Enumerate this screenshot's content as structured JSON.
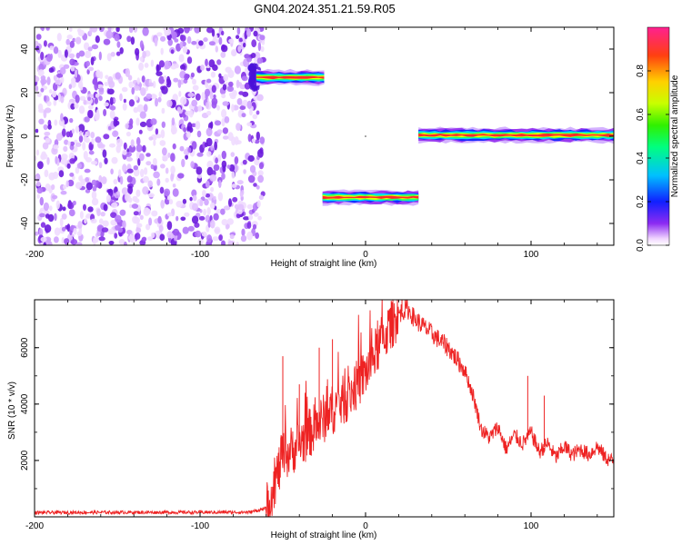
{
  "title": "GN04.2024.351.21.59.R05",
  "chart_data": [
    {
      "type": "heatmap",
      "xlabel": "Height of straight line (km)",
      "ylabel": "Frequency (Hz)",
      "xlim": [
        -200,
        150
      ],
      "ylim": [
        -50,
        50
      ],
      "xticks": [
        "-200",
        "-100",
        "0",
        "100"
      ],
      "xtick_values": [
        -200,
        -100,
        0,
        100
      ],
      "yticks": [
        "40",
        "20",
        "0",
        "-20",
        "-40"
      ],
      "ytick_values": [
        40,
        20,
        0,
        -20,
        -40
      ],
      "colorbar": {
        "label": "Normalized spectral amplitude",
        "ticks": [
          "0.0",
          "0.2",
          "0.4",
          "0.6",
          "0.8"
        ],
        "tick_values": [
          0.0,
          0.2,
          0.4,
          0.6,
          0.8
        ],
        "range": [
          0,
          1
        ]
      },
      "noise_region": {
        "x": [
          -200,
          -64
        ],
        "y": [
          -50,
          50
        ],
        "amplitude": [
          0.02,
          0.15
        ]
      },
      "features": [
        {
          "x": [
            -66,
            -25
          ],
          "y": [
            30,
            24
          ],
          "freq_center": 27,
          "peak_amplitude": 0.95
        },
        {
          "x": [
            -26,
            32
          ],
          "y": [
            -25,
            -31
          ],
          "freq_center": -28,
          "peak_amplitude": 0.95
        },
        {
          "x": [
            32,
            150
          ],
          "y": [
            3,
            -2
          ],
          "freq_center": 0.5,
          "peak_amplitude": 0.95
        }
      ]
    },
    {
      "type": "line",
      "xlabel": "Height of straight line (km)",
      "ylabel": "SNR (10 * v/v)",
      "xlim": [
        -200,
        150
      ],
      "ylim": [
        0,
        7700
      ],
      "xticks": [
        "-200",
        "-100",
        "0",
        "100"
      ],
      "xtick_values": [
        -200,
        -100,
        0,
        100
      ],
      "yticks": [
        "6000",
        "4000",
        "2000"
      ],
      "ytick_values": [
        6000,
        4000,
        2000
      ],
      "series": [
        {
          "color": "#ee2222",
          "x": [
            -200,
            -150,
            -100,
            -70,
            -60,
            -55,
            -50,
            -40,
            -30,
            -20,
            -10,
            0,
            10,
            20,
            25,
            30,
            40,
            50,
            60,
            65,
            70,
            75,
            80,
            85,
            90,
            95,
            100,
            105,
            110,
            115,
            120,
            125,
            130,
            135,
            140,
            145,
            150
          ],
          "values": [
            150,
            160,
            160,
            165,
            300,
            1200,
            2100,
            2600,
            3200,
            3800,
            4300,
            5100,
            6300,
            7200,
            7400,
            7000,
            6500,
            6000,
            5200,
            4300,
            3100,
            2800,
            3200,
            2400,
            2900,
            2600,
            3000,
            2300,
            2600,
            2100,
            2500,
            2200,
            2400,
            2200,
            2500,
            2100,
            1950
          ],
          "noise_amplitude": 150,
          "spikes": [
            {
              "x": -50,
              "y": 5700
            },
            {
              "x": -40,
              "y": 4700
            },
            {
              "x": -28,
              "y": 6000
            },
            {
              "x": -20,
              "y": 6300
            },
            {
              "x": 22,
              "y": 7700
            },
            {
              "x": 98,
              "y": 5000
            },
            {
              "x": 108,
              "y": 4300
            }
          ]
        }
      ]
    }
  ]
}
